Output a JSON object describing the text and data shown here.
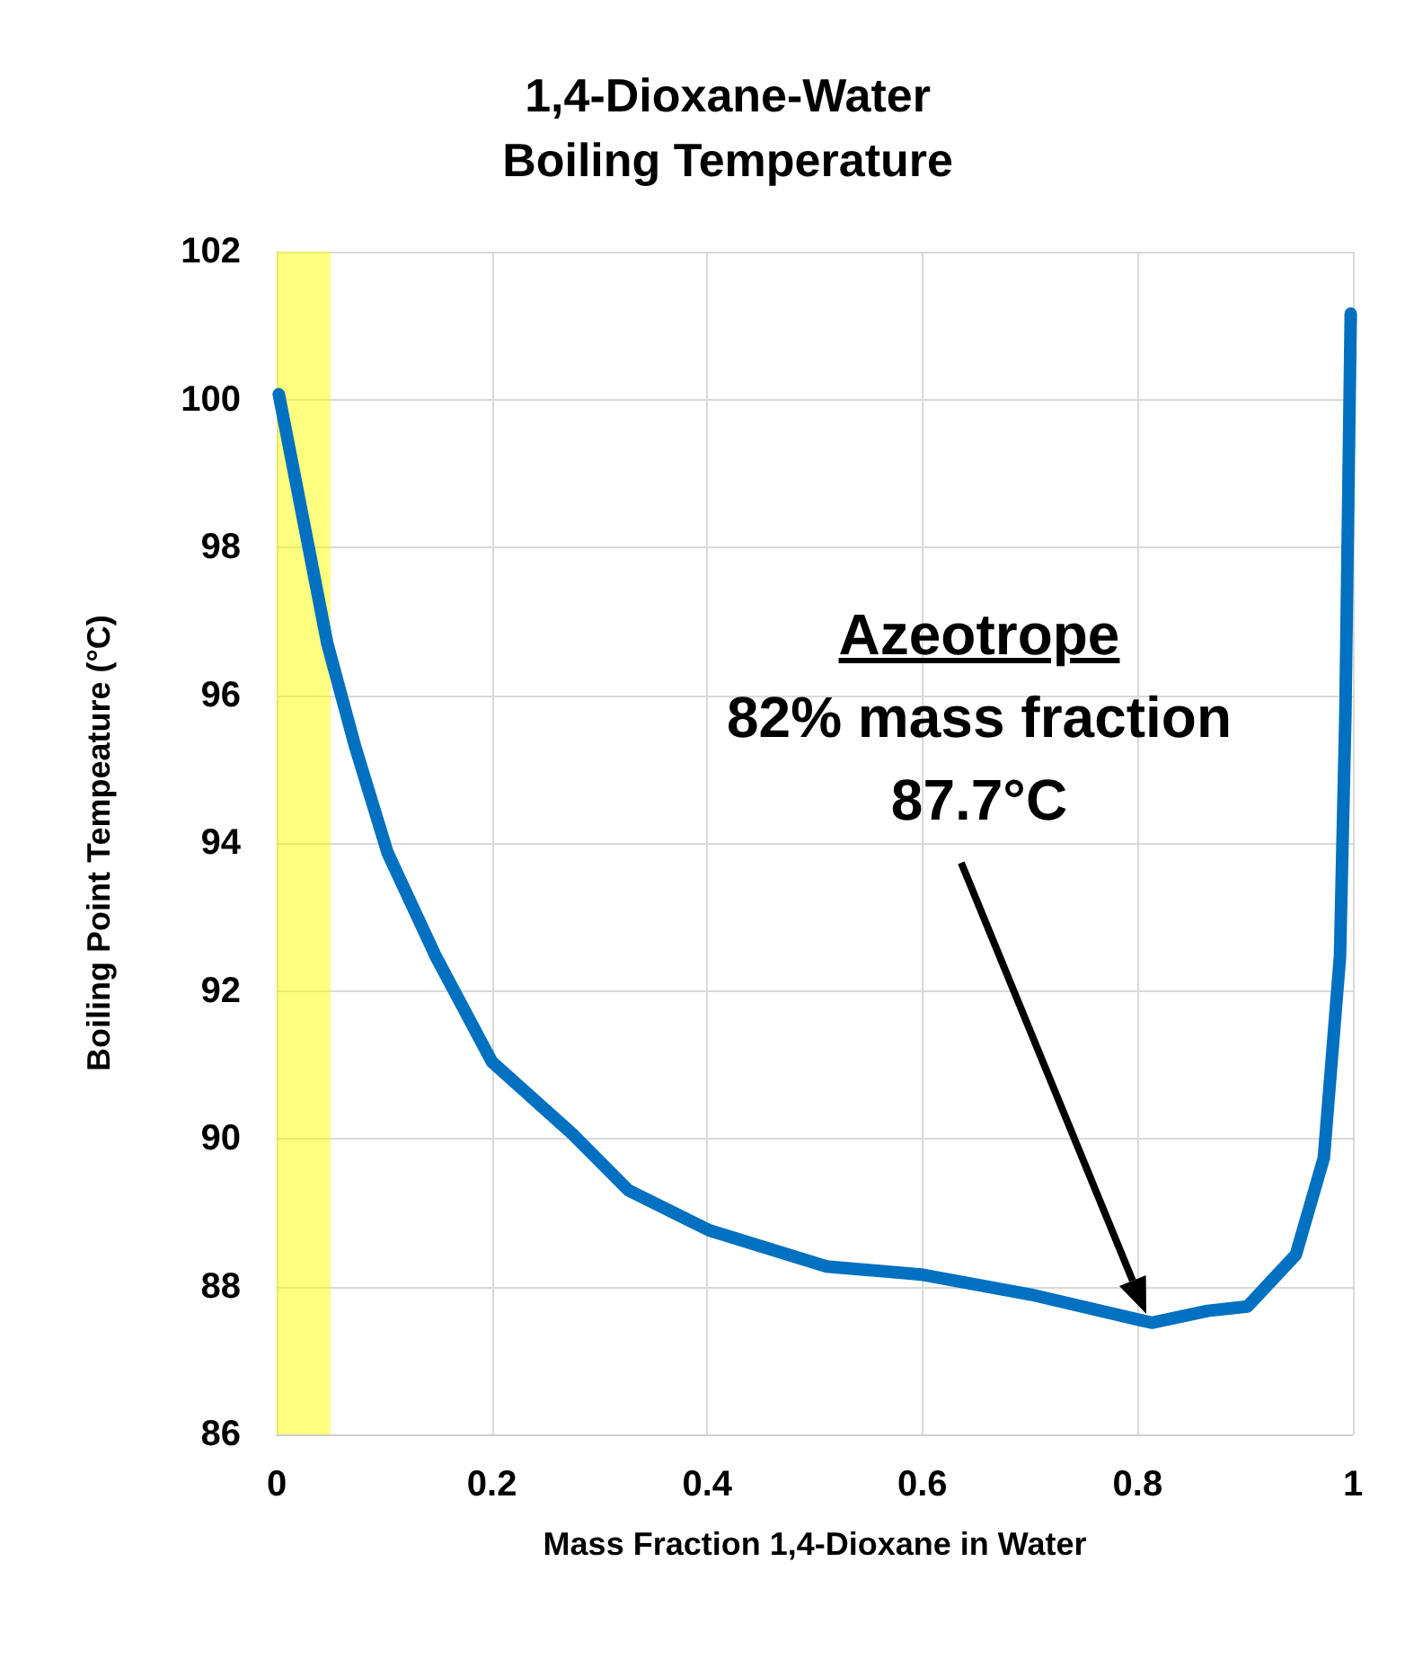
{
  "chart_data": {
    "type": "line",
    "title": "1,4-Dioxane-Water\nBoiling Temperature",
    "xlabel": "Mass Fraction 1,4-Dioxane in Water",
    "ylabel": "Boiling Point Tempeature (°C)",
    "x": [
      0.002,
      0.047,
      0.073,
      0.103,
      0.148,
      0.2,
      0.275,
      0.327,
      0.402,
      0.511,
      0.6,
      0.701,
      0.813,
      0.865,
      0.902,
      0.947,
      0.973,
      0.988,
      0.993,
      0.998
    ],
    "series": [
      {
        "color": "#0070c0",
        "values": [
          100.07,
          96.7,
          95.3,
          93.87,
          92.46,
          91.04,
          90.06,
          89.3,
          88.76,
          88.27,
          88.16,
          87.89,
          87.51,
          87.67,
          87.73,
          88.43,
          89.74,
          92.46,
          95.72,
          101.16
        ]
      }
    ],
    "xlim": [
      0,
      1
    ],
    "xticks": [
      0,
      0.2,
      0.4,
      0.6,
      0.8,
      1
    ],
    "ylim": [
      86,
      102
    ],
    "yticks": [
      86,
      88,
      90,
      92,
      94,
      96,
      98,
      100,
      102
    ],
    "bands": [
      {
        "axis": "x",
        "from": 0,
        "to": 0.05,
        "color": "#ffff00"
      }
    ],
    "annotations": [
      "Azeotrope\n82% mass fraction\n87.7°C"
    ],
    "grid": true,
    "line_style": "solid"
  }
}
